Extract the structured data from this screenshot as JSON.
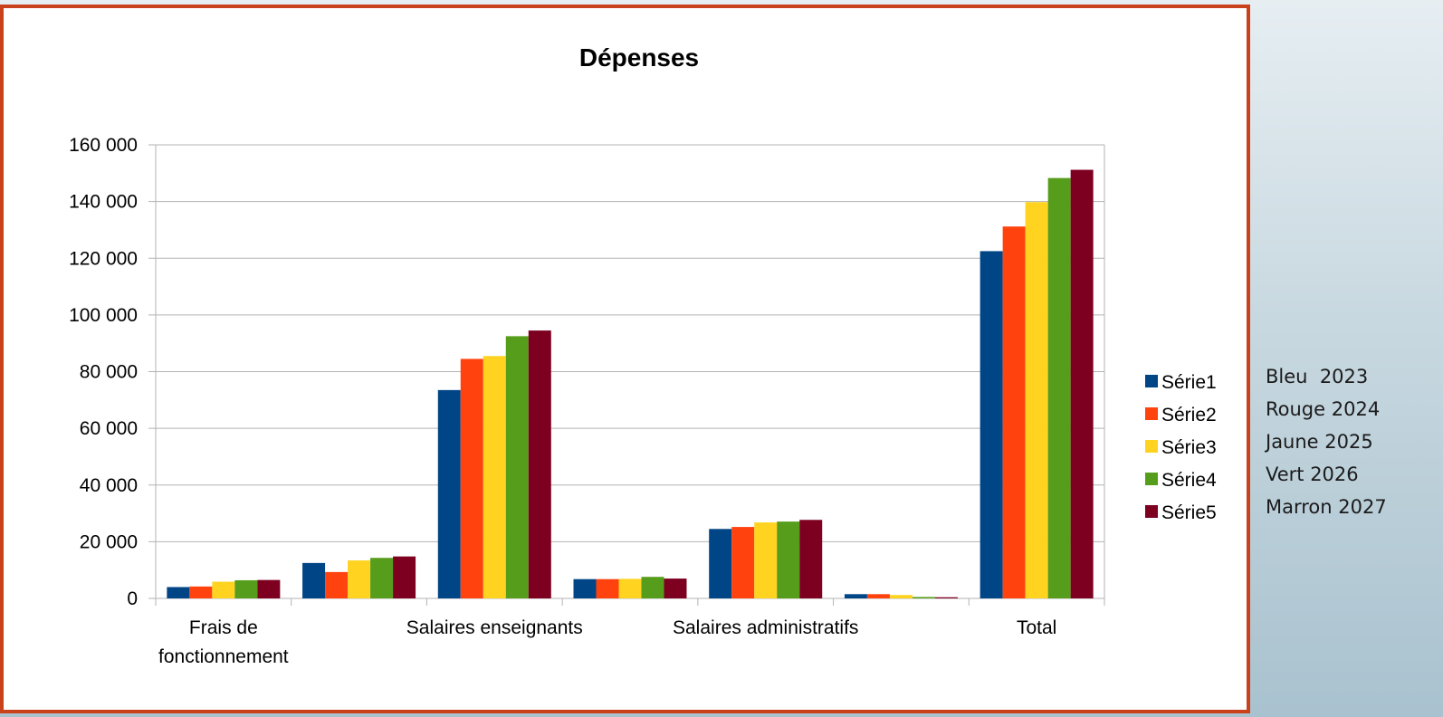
{
  "chart_data": {
    "type": "bar",
    "title": "Dépenses",
    "xlabel": "",
    "ylabel": "",
    "categories": [
      "Frais de fonctionnement",
      "",
      "Salaires enseignants",
      "",
      "Salaires administratifs",
      "",
      "Total"
    ],
    "category_lines": [
      [
        "Frais de",
        "fonctionnement"
      ],
      [],
      [
        "Salaires enseignants"
      ],
      [],
      [
        "Salaires administratifs"
      ],
      [],
      [
        "Total"
      ]
    ],
    "series": [
      {
        "name": "Série1",
        "color": "#004586",
        "values": [
          4000,
          12500,
          73500,
          6800,
          24500,
          1500,
          122500
        ]
      },
      {
        "name": "Série2",
        "color": "#ff420e",
        "values": [
          4200,
          9300,
          84500,
          6800,
          25200,
          1500,
          131200
        ]
      },
      {
        "name": "Série3",
        "color": "#ffd320",
        "values": [
          5900,
          13400,
          85500,
          6900,
          26800,
          1200,
          139800
        ]
      },
      {
        "name": "Série4",
        "color": "#579d1c",
        "values": [
          6400,
          14300,
          92500,
          7600,
          27100,
          500,
          148300
        ]
      },
      {
        "name": "Série5",
        "color": "#7e0021",
        "values": [
          6500,
          14800,
          94500,
          7000,
          27700,
          400,
          151200
        ]
      }
    ],
    "ylim": [
      0,
      160000
    ],
    "yticks": [
      0,
      20000,
      40000,
      60000,
      80000,
      100000,
      120000,
      140000,
      160000
    ],
    "ytick_labels": [
      "0",
      "20 000",
      "40 000",
      "60 000",
      "80 000",
      "100 000",
      "120 000",
      "140 000",
      "160 000"
    ],
    "grid": true,
    "legend": "right"
  },
  "side_note": {
    "lines": [
      "Bleu  2023",
      "Rouge 2024",
      "Jaune 2025",
      "Vert 2026",
      "Marron 2027"
    ]
  }
}
